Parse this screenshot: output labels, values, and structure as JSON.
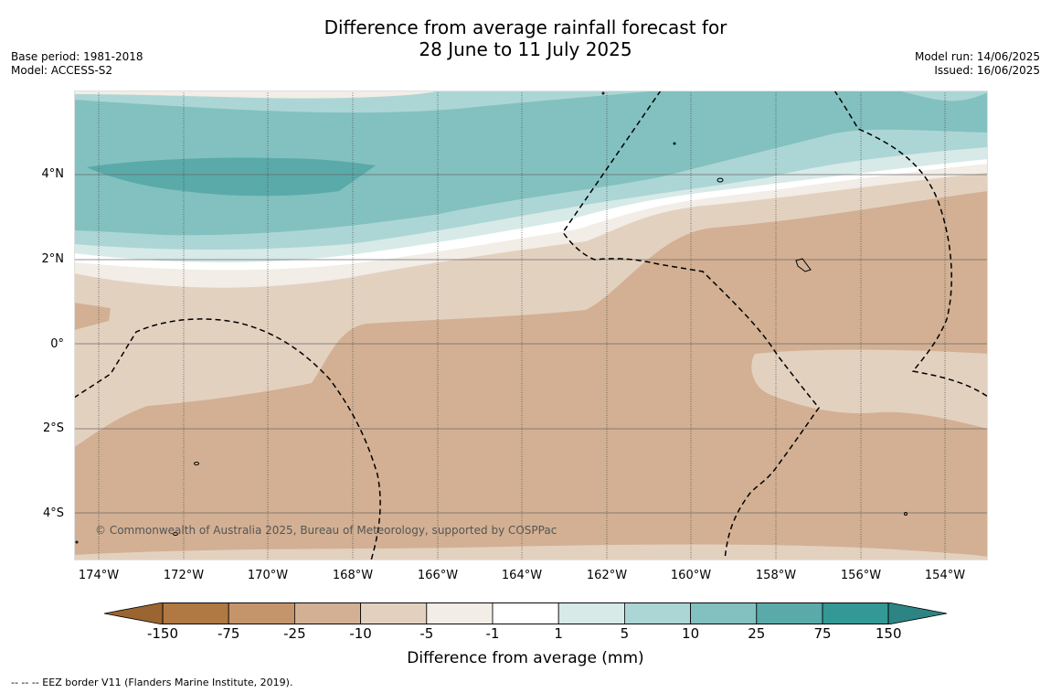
{
  "header": {
    "title_line1": "Difference from average rainfall forecast for",
    "title_line2": "28 June to 11 July 2025",
    "base_period": "Base period: 1981-2018",
    "model": "Model: ACCESS-S2",
    "model_run": "Model run: 14/06/2025",
    "issued": "Issued: 16/06/2025"
  },
  "map": {
    "lat_labels": [
      "4°N",
      "2°N",
      "0°",
      "2°S",
      "4°S"
    ],
    "lon_labels": [
      "174°W",
      "172°W",
      "170°W",
      "168°W",
      "166°W",
      "164°W",
      "162°W",
      "160°W",
      "158°W",
      "156°W",
      "154°W"
    ],
    "copyright": "© Commonwealth of Australia 2025, Bureau of Meteorology, supported by COSPPac"
  },
  "colorbar": {
    "ticks": [
      "-150",
      "-75",
      "-25",
      "-10",
      "-5",
      "-1",
      "1",
      "5",
      "10",
      "25",
      "75",
      "150"
    ],
    "colors": [
      "#b07842",
      "#c4956b",
      "#d3b093",
      "#e3d1c0",
      "#f2ede6",
      "#ffffff",
      "#d7eae8",
      "#acd6d5",
      "#82c1bf",
      "#5aaaaa",
      "#339896"
    ],
    "extend_low_color": "#9a6530",
    "extend_high_color": "#2d8583",
    "label": "Difference from average (mm)"
  },
  "footnote": "--  --  -- EEZ border V11 (Flanders Marine Institute, 2019)."
}
